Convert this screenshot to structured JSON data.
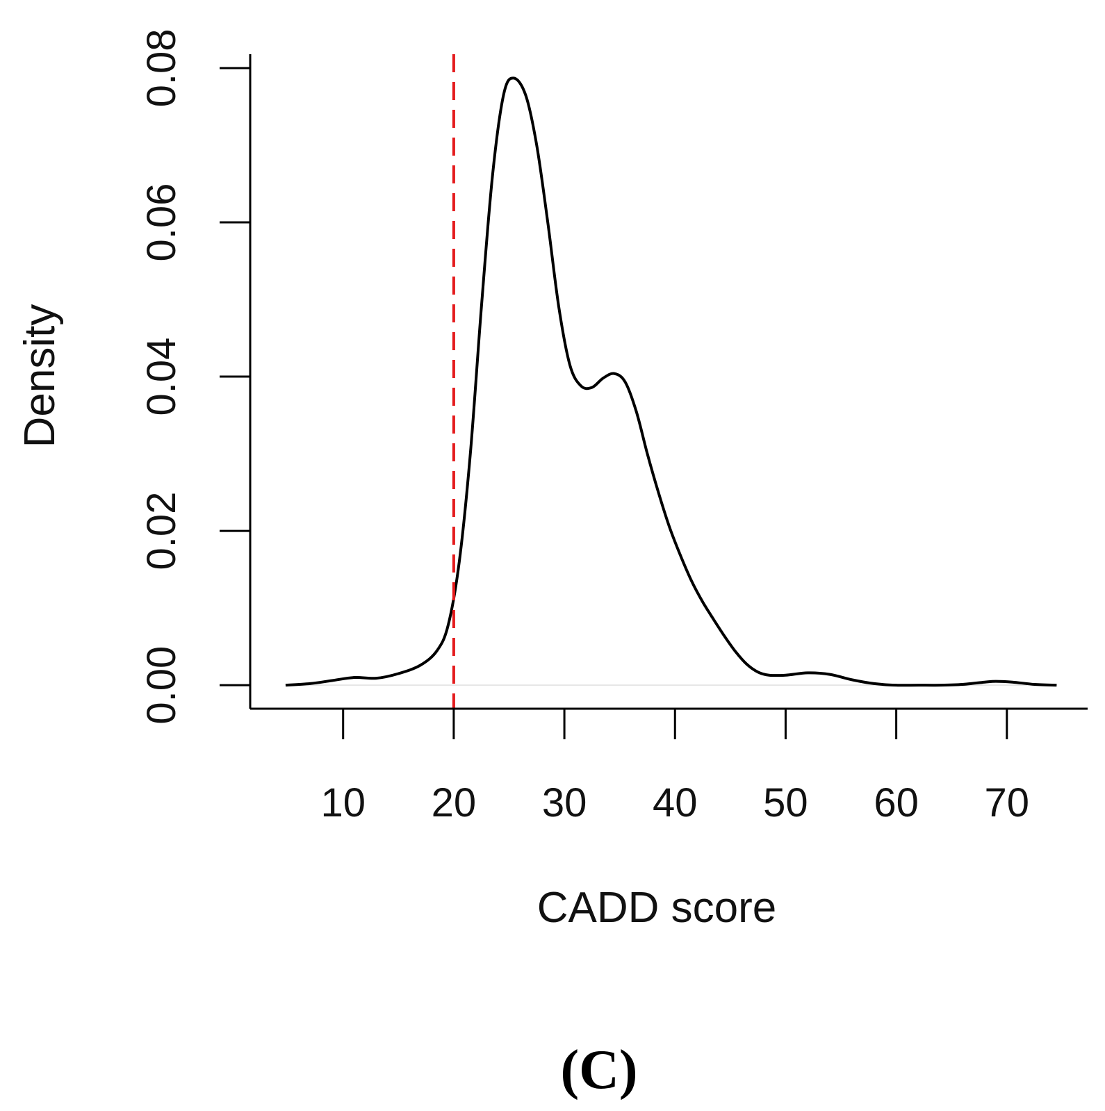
{
  "chart_data": {
    "type": "line",
    "title": "",
    "xlabel": "CADD score",
    "ylabel": "Density",
    "panel_label": "(C)",
    "xlim": [
      1.6,
      77.3
    ],
    "ylim": [
      -0.00305,
      0.0818
    ],
    "xticks": [
      10,
      20,
      30,
      40,
      50,
      60,
      70
    ],
    "xtick_labels": [
      "10",
      "20",
      "30",
      "40",
      "50",
      "60",
      "70"
    ],
    "yticks": [
      0,
      0.02,
      0.04,
      0.06,
      0.08
    ],
    "ytick_labels": [
      "0.00",
      "0.02",
      "0.04",
      "0.06",
      "0.08"
    ],
    "grid": false,
    "colors": {
      "curve": "#000000",
      "threshold": "#e41a1c",
      "baseline": "#e6e6e6",
      "axis": "#000000"
    },
    "reference_line": {
      "x": 20,
      "style": "dashed",
      "color": "#e41a1c"
    },
    "series": [
      {
        "name": "density",
        "x": [
          4.8,
          7,
          9,
          11,
          13,
          15,
          17,
          18.5,
          19.5,
          20.5,
          21.5,
          22.5,
          23.5,
          24.5,
          25.4,
          26.5,
          27.5,
          28.5,
          29.5,
          30.5,
          31.5,
          32.5,
          33.5,
          34.5,
          35.5,
          36.5,
          37.5,
          38.5,
          39.5,
          40.5,
          41.5,
          42.5,
          43.5,
          44.5,
          45.5,
          46.5,
          47.5,
          48.5,
          50,
          52,
          54,
          56,
          58,
          60,
          62,
          64,
          66,
          68,
          69,
          70.5,
          72.5,
          74.5
        ],
        "y": [
          0,
          0.0002,
          0.0006,
          0.001,
          0.0009,
          0.0015,
          0.0026,
          0.0045,
          0.0078,
          0.016,
          0.03,
          0.049,
          0.066,
          0.0765,
          0.0787,
          0.0765,
          0.07,
          0.06,
          0.049,
          0.0415,
          0.0388,
          0.0386,
          0.0398,
          0.0404,
          0.0393,
          0.0355,
          0.03,
          0.025,
          0.0205,
          0.0168,
          0.0135,
          0.0108,
          0.0085,
          0.0063,
          0.0043,
          0.0027,
          0.0017,
          0.0013,
          0.0013,
          0.0016,
          0.0014,
          0.0007,
          0.0002,
          0,
          0,
          0,
          0.0001,
          0.0004,
          0.0005,
          0.0004,
          0.0001,
          0
        ]
      }
    ]
  }
}
